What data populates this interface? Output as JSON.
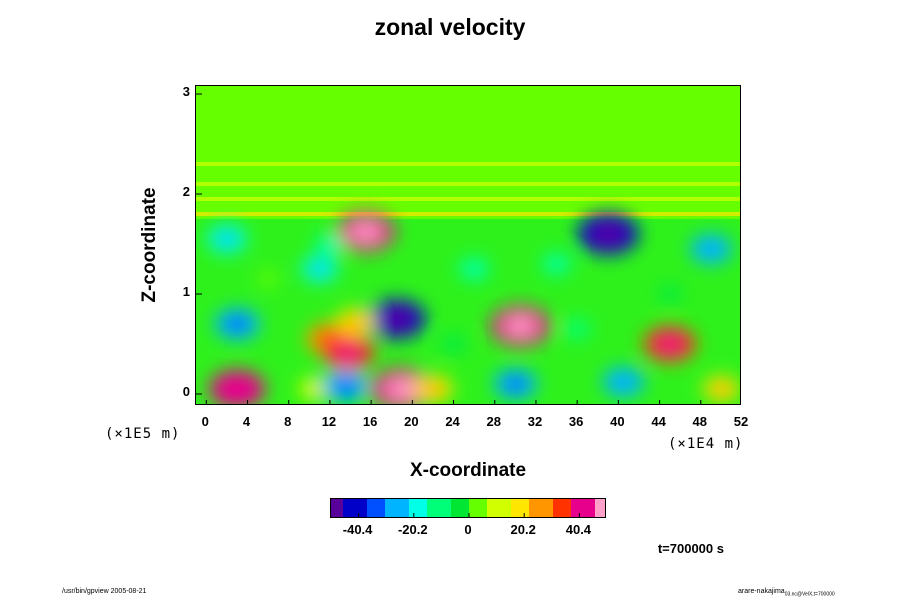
{
  "chart_data": {
    "type": "heatmap",
    "title": "zonal velocity",
    "xlabel": "X-coordinate",
    "ylabel": "Z-coordinate",
    "x_scale_note": "(×1E4 m)",
    "y_scale_note": "(×1E5 m)",
    "x_ticks": [
      "0",
      "4",
      "8",
      "12",
      "16",
      "20",
      "24",
      "28",
      "32",
      "36",
      "40",
      "44",
      "48",
      "52"
    ],
    "y_ticks": [
      "0",
      "1",
      "2",
      "3"
    ],
    "xlim": [
      -1,
      52
    ],
    "ylim": [
      -0.12,
      3.08
    ],
    "colorbar": {
      "ticks": [
        "-40.4",
        "-20.2",
        "0",
        "20.2",
        "40.4"
      ],
      "tick_values": [
        -40.4,
        -20.2,
        0,
        20.2,
        40.4
      ],
      "range": [
        -50.5,
        50.5
      ],
      "colors": [
        "#5a009a",
        "#0000c8",
        "#0050ff",
        "#00b4ff",
        "#00ffe6",
        "#00ff78",
        "#00e632",
        "#66ff00",
        "#d2ff00",
        "#ffe600",
        "#ff9600",
        "#ff3200",
        "#e6008c",
        "#ffa0c8"
      ]
    },
    "background_value": 6,
    "blobs": [
      {
        "x": 3,
        "z": 0.7,
        "v": -28
      },
      {
        "x": 3,
        "z": 0.05,
        "v": 40
      },
      {
        "x": 10.5,
        "z": 0.05,
        "v": 12
      },
      {
        "x": 13.5,
        "z": 0.08,
        "v": -30
      },
      {
        "x": 19,
        "z": 0.05,
        "v": 46
      },
      {
        "x": 22,
        "z": 0.05,
        "v": 22
      },
      {
        "x": 18.5,
        "z": 0.75,
        "v": -42
      },
      {
        "x": 12,
        "z": 0.55,
        "v": 30
      },
      {
        "x": 13.8,
        "z": 0.42,
        "v": 36
      },
      {
        "x": 14.5,
        "z": 0.72,
        "v": 20
      },
      {
        "x": 15.5,
        "z": 1.62,
        "v": 42
      },
      {
        "x": 12,
        "z": 1.5,
        "v": -12
      },
      {
        "x": 2,
        "z": 1.55,
        "v": -22
      },
      {
        "x": 11,
        "z": 1.25,
        "v": -18
      },
      {
        "x": 30.5,
        "z": 0.68,
        "v": 44
      },
      {
        "x": 30,
        "z": 0.1,
        "v": -26
      },
      {
        "x": 40.5,
        "z": 0.12,
        "v": -24
      },
      {
        "x": 39,
        "z": 1.6,
        "v": -46
      },
      {
        "x": 45,
        "z": 0.5,
        "v": 36
      },
      {
        "x": 49,
        "z": 1.45,
        "v": -24
      },
      {
        "x": 50,
        "z": 0.05,
        "v": 18
      },
      {
        "x": 26,
        "z": 1.25,
        "v": -14
      },
      {
        "x": 34,
        "z": 1.3,
        "v": -12
      },
      {
        "x": 36,
        "z": 0.65,
        "v": -8
      },
      {
        "x": 24,
        "z": 0.5,
        "v": -6
      },
      {
        "x": 45,
        "z": 1.0,
        "v": -4
      },
      {
        "x": 6,
        "z": 1.15,
        "v": 0
      }
    ],
    "bands": [
      {
        "z": 1.8,
        "v": 20
      },
      {
        "z": 1.95,
        "v": 14
      },
      {
        "z": 2.1,
        "v": 10
      },
      {
        "z": 2.3,
        "v": 8
      }
    ],
    "time_label": "t=700000 s"
  },
  "footer": {
    "left": "/usr/bin/gpview 2005-08-21",
    "right": "arare-nakajima",
    "right_sub": "03.nc@VelX,t=700000"
  }
}
